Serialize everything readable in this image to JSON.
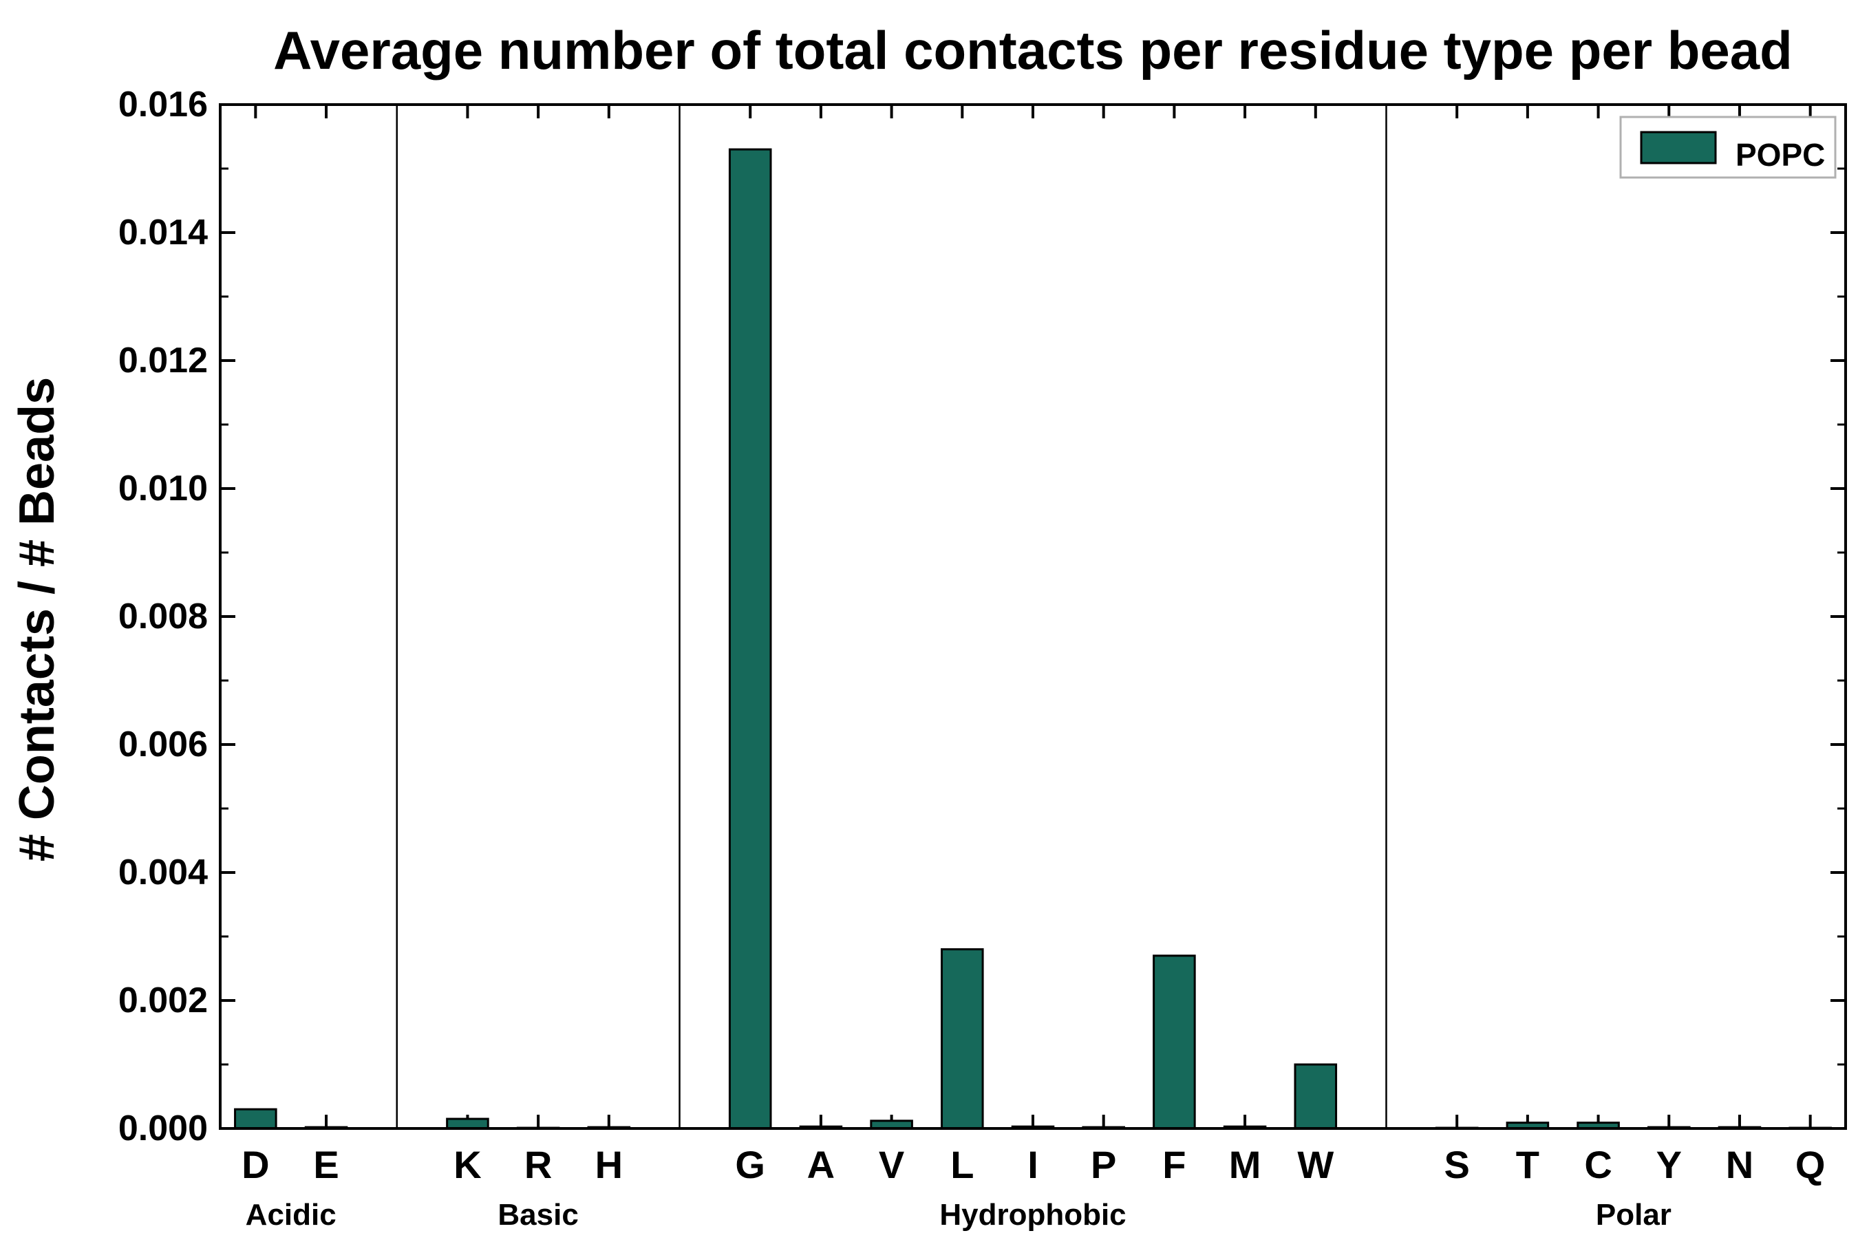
{
  "chart_data": {
    "type": "bar",
    "title": "Average number of total contacts per residue type per bead",
    "ylabel": "# Contacts / # Beads",
    "xlabel": "",
    "ylim": [
      0,
      0.016
    ],
    "ytick_step": 0.002,
    "grid": false,
    "legend_position": "upper right",
    "series_name": "POPC",
    "bar_color": "#16695a",
    "bar_edge_color": "#000000",
    "axis_color": "#000000",
    "groups": [
      {
        "label": "Acidic",
        "categories": [
          "D",
          "E"
        ],
        "values": [
          0.0003,
          2e-05
        ]
      },
      {
        "label": "Basic",
        "categories": [
          "K",
          "R",
          "H"
        ],
        "values": [
          0.00015,
          1e-05,
          2e-05
        ]
      },
      {
        "label": "Hydrophobic",
        "categories": [
          "G",
          "A",
          "V",
          "L",
          "I",
          "P",
          "F",
          "M",
          "W"
        ],
        "values": [
          0.0153,
          3e-05,
          0.00012,
          0.0028,
          3e-05,
          2e-05,
          0.0027,
          3e-05,
          0.001
        ]
      },
      {
        "label": "Polar",
        "categories": [
          "S",
          "T",
          "C",
          "Y",
          "N",
          "Q"
        ],
        "values": [
          1e-05,
          9e-05,
          9e-05,
          2e-05,
          2e-05,
          1e-05
        ]
      }
    ]
  },
  "legend": {
    "label": "POPC"
  }
}
